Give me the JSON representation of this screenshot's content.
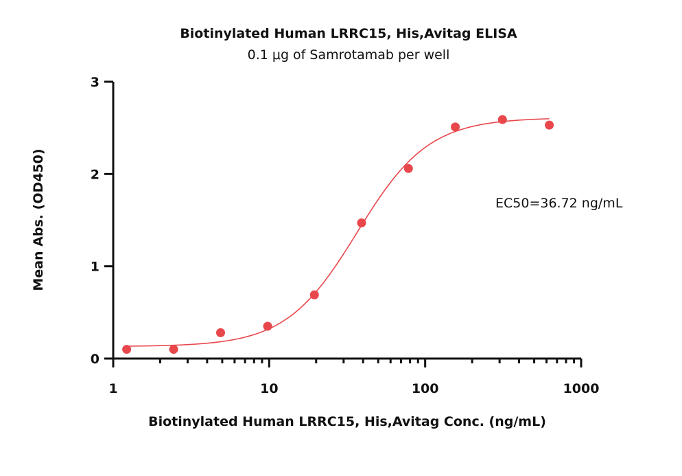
{
  "chart_data": {
    "type": "scatter",
    "title": "Biotinylated Human LRRC15, His,Avitag ELISA",
    "subtitle": "0.1 μg of Samrotamab per well",
    "xlabel": "Biotinylated Human LRRC15, His,Avitag Conc. (ng/mL)",
    "ylabel": "Mean Abs. (OD450)",
    "x_scale": "log",
    "xlim": [
      1,
      1000
    ],
    "ylim": [
      0,
      3
    ],
    "x_ticks": [
      1,
      10,
      100,
      1000
    ],
    "x_tick_labels": [
      "1",
      "10",
      "100",
      "1000"
    ],
    "y_ticks": [
      0,
      1,
      2,
      3
    ],
    "y_tick_labels": [
      "0",
      "1",
      "2",
      "3"
    ],
    "grid": false,
    "series": [
      {
        "x": [
          1.22,
          2.44,
          4.88,
          9.77,
          19.5,
          39.1,
          78.1,
          156,
          313,
          625
        ],
        "y": [
          0.1,
          0.1,
          0.28,
          0.35,
          0.69,
          1.47,
          2.06,
          2.51,
          2.59,
          2.53
        ],
        "color": "#e8474c"
      }
    ],
    "fit_curve": {
      "model": "4PL",
      "bottom": 0.13,
      "top": 2.61,
      "ec50": 36.72,
      "hill": 1.9,
      "color": "#e8474c"
    },
    "annotation": "EC50=36.72 ng/mL"
  }
}
